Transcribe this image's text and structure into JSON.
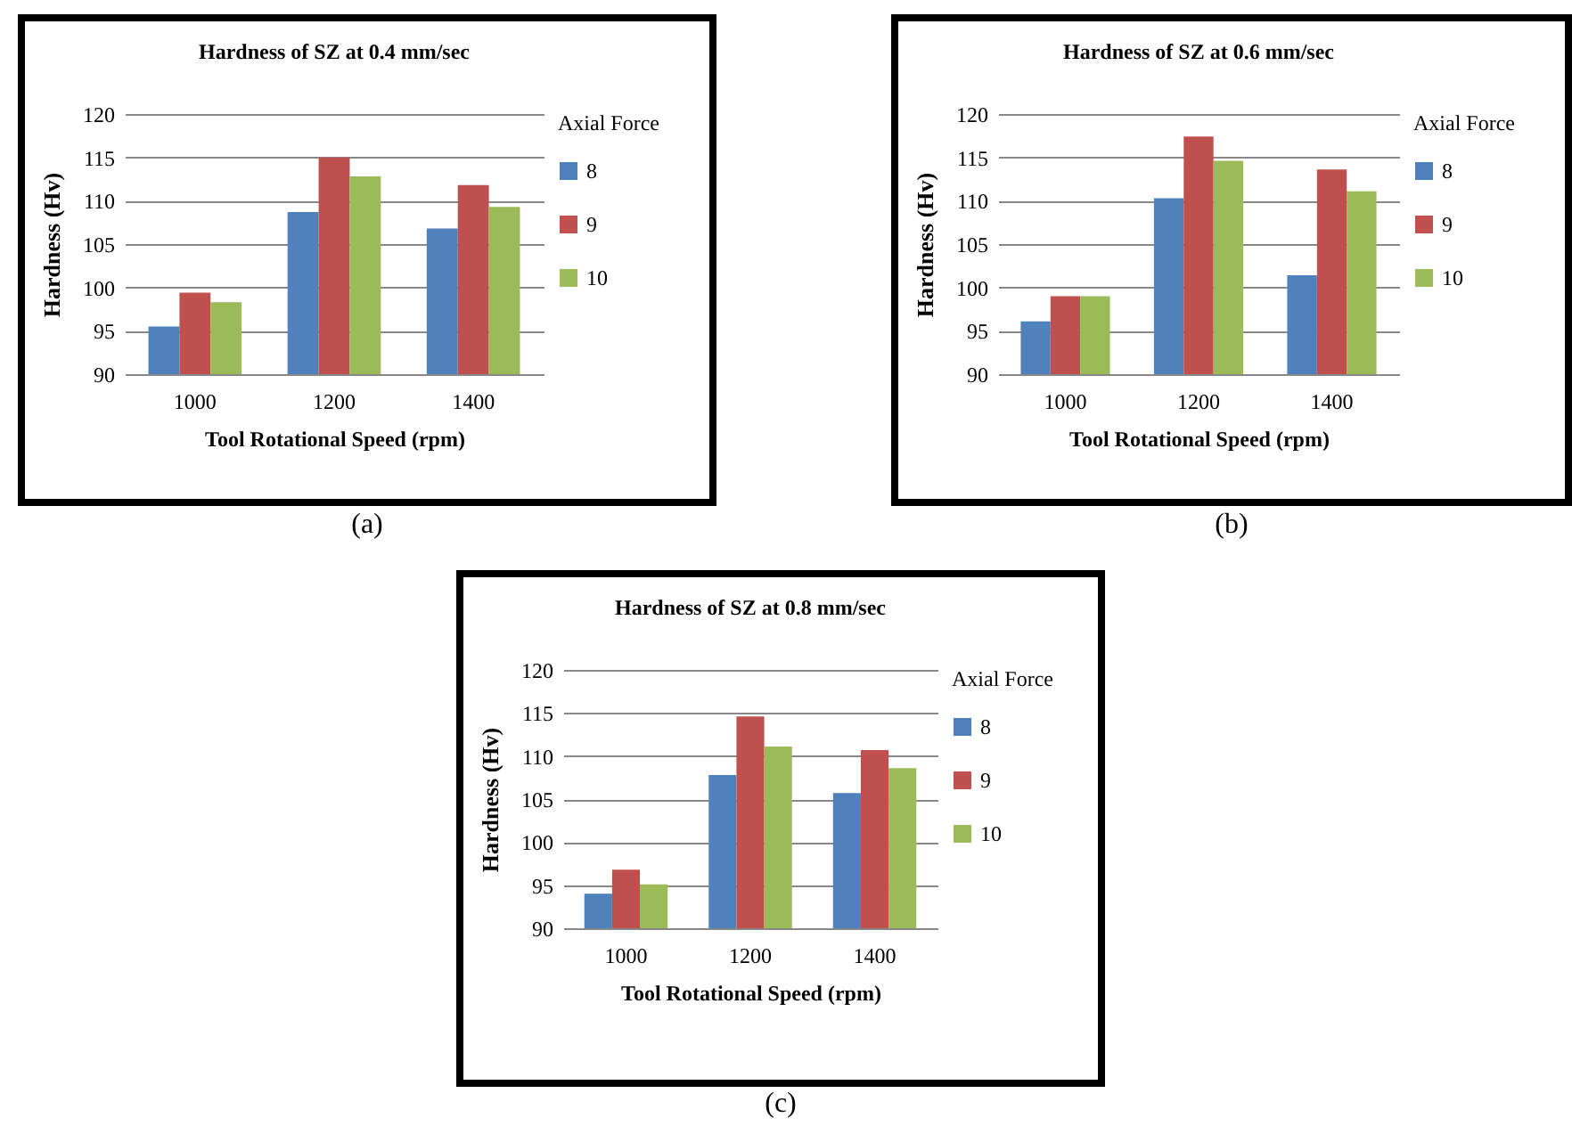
{
  "chart_data": [
    {
      "type": "bar",
      "title": "Hardness of SZ at  0.4 mm/sec",
      "xlabel": "Tool Rotational Speed (rpm)",
      "ylabel": "Hardness (Hv)",
      "legend_title": "Axial Force",
      "categories": [
        "1000",
        "1200",
        "1400"
      ],
      "series": [
        {
          "name": "8",
          "color": "#4f81bd",
          "values": [
            95.5,
            108.7,
            106.8
          ]
        },
        {
          "name": "9",
          "color": "#c0504d",
          "values": [
            99.4,
            115,
            111.8
          ]
        },
        {
          "name": "10",
          "color": "#9bbb59",
          "values": [
            98.3,
            112.8,
            109.3
          ]
        }
      ],
      "ylim": [
        90,
        120
      ],
      "yticks": [
        90,
        95,
        100,
        105,
        110,
        115,
        120
      ],
      "grid": "y",
      "legend": "right",
      "annotations": [
        "(a)"
      ]
    },
    {
      "type": "bar",
      "title": "Hardness of SZ at  0.6 mm/sec",
      "xlabel": "Tool Rotational Speed (rpm)",
      "ylabel": "Hardness (Hv)",
      "legend_title": "Axial Force",
      "categories": [
        "1000",
        "1200",
        "1400"
      ],
      "series": [
        {
          "name": "8",
          "color": "#4f81bd",
          "values": [
            96.1,
            110.3,
            101.4
          ]
        },
        {
          "name": "9",
          "color": "#c0504d",
          "values": [
            99,
            117.4,
            113.6
          ]
        },
        {
          "name": "10",
          "color": "#9bbb59",
          "values": [
            99,
            114.6,
            111.1
          ]
        }
      ],
      "ylim": [
        90,
        120
      ],
      "yticks": [
        90,
        95,
        100,
        105,
        110,
        115,
        120
      ],
      "grid": "y",
      "legend": "right",
      "annotations": [
        "(b)"
      ]
    },
    {
      "type": "bar",
      "title": "Hardness of SZ at  0.8 mm/sec",
      "xlabel": "Tool Rotational Speed (rpm)",
      "ylabel": "Hardness (Hv)",
      "legend_title": "Axial Force",
      "categories": [
        "1000",
        "1200",
        "1400"
      ],
      "series": [
        {
          "name": "8",
          "color": "#4f81bd",
          "values": [
            94,
            107.8,
            105.7
          ]
        },
        {
          "name": "9",
          "color": "#c0504d",
          "values": [
            96.8,
            114.6,
            110.7
          ]
        },
        {
          "name": "10",
          "color": "#9bbb59",
          "values": [
            95.1,
            111.1,
            108.6
          ]
        }
      ],
      "ylim": [
        90,
        120
      ],
      "yticks": [
        90,
        95,
        100,
        105,
        110,
        115,
        120
      ],
      "grid": "y",
      "legend": "right",
      "annotations": [
        "(c)"
      ]
    }
  ]
}
